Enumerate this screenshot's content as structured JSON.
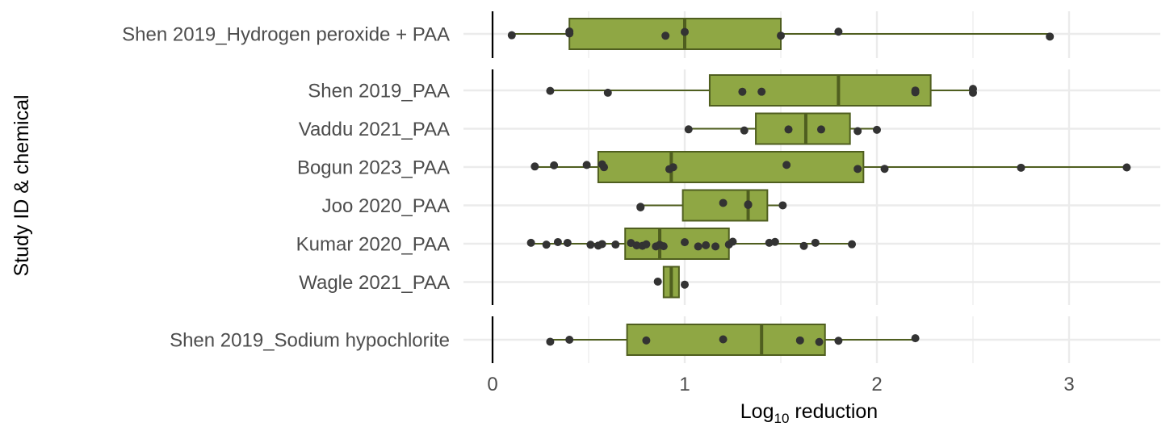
{
  "chart_data": {
    "type": "boxplot",
    "xlabel_main": "Log",
    "xlabel_sub": "10",
    "xlabel_rest": " reduction",
    "ylabel": "Study ID & chemical",
    "xlim": [
      -0.0,
      3.45
    ],
    "x_ticks": [
      0,
      1,
      2,
      3
    ],
    "box_color": "#8fa744",
    "box_edge_color": "#4f5e1f",
    "point_color": "#333333",
    "grid_color": "#ebebeb",
    "groups": [
      {
        "name": "hydrogen-peroxide-paa",
        "rows": [
          {
            "label": "Shen 2019_Hydrogen peroxide + PAA",
            "q1": 0.4,
            "median": 1.0,
            "q3": 1.5,
            "whisker_low": 0.1,
            "whisker_high": 2.9,
            "points": [
              0.1,
              0.4,
              0.4,
              0.9,
              1.0,
              1.5,
              1.8,
              2.9
            ]
          }
        ]
      },
      {
        "name": "paa",
        "rows": [
          {
            "label": "Shen 2019_PAA",
            "q1": 1.13,
            "median": 1.8,
            "q3": 2.28,
            "whisker_low": 0.3,
            "whisker_high": 2.5,
            "points": [
              0.3,
              0.6,
              1.3,
              1.4,
              2.2,
              2.2,
              2.5,
              2.5
            ]
          },
          {
            "label": "Vaddu 2021_PAA",
            "q1": 1.37,
            "median": 1.63,
            "q3": 1.86,
            "whisker_low": 1.02,
            "whisker_high": 2.0,
            "points": [
              1.02,
              1.31,
              1.54,
              1.71,
              1.9,
              2.0
            ]
          },
          {
            "label": "Bogun 2023_PAA",
            "q1": 0.55,
            "median": 0.93,
            "q3": 1.93,
            "whisker_low": 0.22,
            "whisker_high": 3.3,
            "points": [
              0.22,
              0.32,
              0.49,
              0.57,
              0.58,
              0.92,
              0.94,
              1.53,
              1.9,
              2.04,
              2.75,
              3.3
            ]
          },
          {
            "label": "Joo 2020_PAA",
            "q1": 0.99,
            "median": 1.33,
            "q3": 1.43,
            "whisker_low": 0.77,
            "whisker_high": 1.51,
            "points": [
              0.77,
              0.77,
              1.2,
              1.33,
              1.33,
              1.51
            ]
          },
          {
            "label": "Kumar 2020_PAA",
            "q1": 0.69,
            "median": 0.87,
            "q3": 1.23,
            "whisker_low": 0.2,
            "whisker_high": 1.87,
            "points": [
              0.2,
              0.28,
              0.34,
              0.39,
              0.51,
              0.55,
              0.57,
              0.64,
              0.72,
              0.75,
              0.78,
              0.8,
              0.85,
              0.87,
              0.89,
              1.0,
              1.07,
              1.11,
              1.16,
              1.23,
              1.25,
              1.44,
              1.47,
              1.62,
              1.68,
              1.87
            ]
          },
          {
            "label": "Wagle 2021_PAA",
            "q1": 0.89,
            "median": 0.93,
            "q3": 0.97,
            "whisker_low": 0.89,
            "whisker_high": 0.97,
            "points": [
              0.86,
              1.0
            ]
          }
        ]
      },
      {
        "name": "sodium-hypochlorite",
        "rows": [
          {
            "label": "Shen 2019_Sodium hypochlorite",
            "q1": 0.7,
            "median": 1.4,
            "q3": 1.73,
            "whisker_low": 0.3,
            "whisker_high": 2.2,
            "points": [
              0.3,
              0.4,
              0.8,
              1.2,
              1.6,
              1.7,
              1.8,
              2.2
            ]
          }
        ]
      }
    ]
  }
}
